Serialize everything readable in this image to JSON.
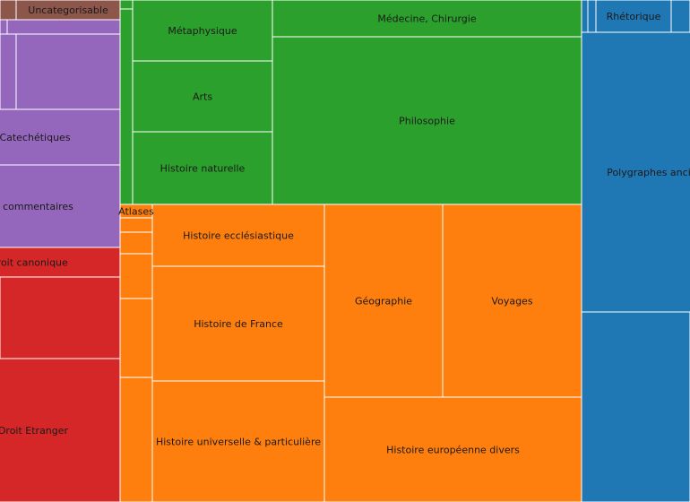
{
  "chart_data": {
    "type": "treemap",
    "colors": {
      "brown": "#8c564b",
      "purple": "#9467bd",
      "red": "#d62728",
      "green": "#2ca02c",
      "orange": "#ff7f0e",
      "blue": "#1f77b4"
    },
    "cells": [
      {
        "label": "Uncategorisable",
        "color": "#8c564b"
      },
      {
        "label": "",
        "color": "#8c564b"
      },
      {
        "label": "",
        "color": "#9467bd"
      },
      {
        "label": "",
        "color": "#9467bd"
      },
      {
        "label": "",
        "color": "#9467bd"
      },
      {
        "label": "",
        "color": "#9467bd"
      },
      {
        "label": "Catechétiques",
        "color": "#9467bd"
      },
      {
        "label": "Bible & commentaires",
        "color": "#9467bd"
      },
      {
        "label": "Droit canonique",
        "color": "#d62728"
      },
      {
        "label": "",
        "color": "#d62728"
      },
      {
        "label": "Droit Etranger",
        "color": "#d62728"
      },
      {
        "label": "",
        "color": "#2ca02c"
      },
      {
        "label": "",
        "color": "#2ca02c"
      },
      {
        "label": "Métaphysique",
        "color": "#2ca02c"
      },
      {
        "label": "Arts",
        "color": "#2ca02c"
      },
      {
        "label": "Histoire naturelle",
        "color": "#2ca02c"
      },
      {
        "label": "Médecine, Chirurgie",
        "color": "#2ca02c"
      },
      {
        "label": "Philosophie",
        "color": "#2ca02c"
      },
      {
        "label": "Atlases",
        "color": "#ff7f0e"
      },
      {
        "label": "",
        "color": "#ff7f0e"
      },
      {
        "label": "",
        "color": "#ff7f0e"
      },
      {
        "label": "",
        "color": "#ff7f0e"
      },
      {
        "label": "",
        "color": "#ff7f0e"
      },
      {
        "label": "",
        "color": "#ff7f0e"
      },
      {
        "label": "",
        "color": "#ff7f0e"
      },
      {
        "label": "Histoire ecclésiastique",
        "color": "#ff7f0e"
      },
      {
        "label": "Histoire de France",
        "color": "#ff7f0e"
      },
      {
        "label": "Histoire universelle & particulière",
        "color": "#ff7f0e"
      },
      {
        "label": "Géographie",
        "color": "#ff7f0e"
      },
      {
        "label": "Voyages",
        "color": "#ff7f0e"
      },
      {
        "label": "Histoire européenne divers",
        "color": "#ff7f0e"
      },
      {
        "label": "",
        "color": "#1f77b4"
      },
      {
        "label": "",
        "color": "#1f77b4"
      },
      {
        "label": "Rhétorique",
        "color": "#1f77b4"
      },
      {
        "label": "",
        "color": "#1f77b4"
      },
      {
        "label": "Polygraphes anciens & modernes",
        "color": "#1f77b4"
      },
      {
        "label": "",
        "color": "#1f77b4"
      }
    ]
  }
}
